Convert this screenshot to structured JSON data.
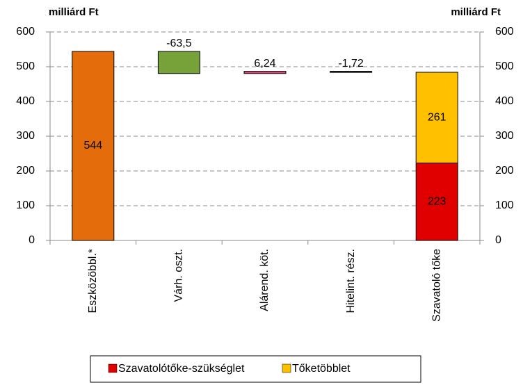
{
  "chart_data": {
    "type": "waterfall",
    "y_label": "milliárd Ft",
    "y2_label": "milliárd Ft",
    "categories": [
      "Eszközöbbl.*",
      "Várh. oszt.",
      "Alárend. köt.",
      "Hitelint. rész.",
      "Szavatoló tőke"
    ],
    "steps": {
      "values": [
        544,
        -63.5,
        6.24,
        -1.72,
        null
      ],
      "value_labels": [
        "544",
        "-63,5",
        "6,24",
        "-1,72",
        null
      ],
      "colors": [
        "#e46c0a",
        "#77a23a",
        "#e8467c",
        "#000000",
        null
      ]
    },
    "series": [
      {
        "name": "Szavatolótőke-szükséglet",
        "color": "#e00000",
        "values": [
          null,
          null,
          null,
          null,
          223
        ]
      },
      {
        "name": "Tőketöbblet",
        "color": "#ffc000",
        "values": [
          null,
          null,
          null,
          null,
          261
        ]
      }
    ],
    "ylim": [
      0,
      600
    ],
    "yticks": [
      0,
      100,
      200,
      300,
      400,
      500,
      600
    ],
    "y2lim": [
      0,
      600
    ],
    "y2ticks": [
      0,
      100,
      200,
      300,
      400,
      500,
      600
    ],
    "grid": true,
    "legend": "bottom"
  }
}
